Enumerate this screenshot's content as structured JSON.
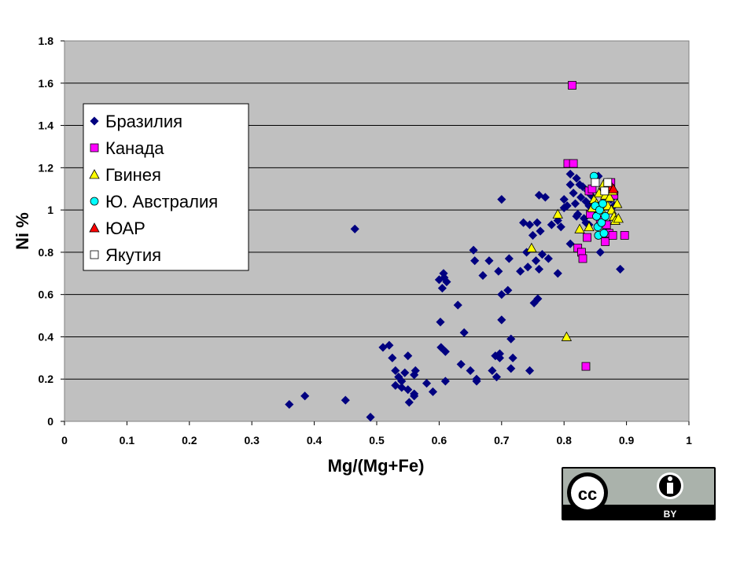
{
  "colors": {
    "plot_bg": "#c0c0c0",
    "brazil": "#000080",
    "canada": "#ff00ff",
    "guinea": "#ffff00",
    "australia": "#00ffff",
    "sa": "#ff0000",
    "yakutia": "#ffffff"
  },
  "license": {
    "icon": "cc-by-icon",
    "label": "BY"
  },
  "chart_data": {
    "type": "scatter",
    "xlabel": "Mg/(Mg+Fe)",
    "ylabel": "Ni %",
    "xlim": [
      0,
      1
    ],
    "ylim": [
      0,
      1.8
    ],
    "xticks": [
      "0",
      "0.1",
      "0.2",
      "0.3",
      "0.4",
      "0.5",
      "0.6",
      "0.7",
      "0.8",
      "0.9",
      "1"
    ],
    "yticks": [
      "0",
      "0.2",
      "0.4",
      "0.6",
      "0.8",
      "1",
      "1.2",
      "1.4",
      "1.6",
      "1.8"
    ],
    "grid": "horizontal",
    "legend_position": "upper-left",
    "series": [
      {
        "name": "Бразилия",
        "marker": "diamond",
        "color": "#000080",
        "points": [
          [
            0.36,
            0.08
          ],
          [
            0.385,
            0.12
          ],
          [
            0.45,
            0.1
          ],
          [
            0.465,
            0.91
          ],
          [
            0.49,
            0.02
          ],
          [
            0.51,
            0.35
          ],
          [
            0.52,
            0.36
          ],
          [
            0.525,
            0.3
          ],
          [
            0.53,
            0.24
          ],
          [
            0.53,
            0.17
          ],
          [
            0.535,
            0.21
          ],
          [
            0.54,
            0.19
          ],
          [
            0.54,
            0.16
          ],
          [
            0.545,
            0.23
          ],
          [
            0.55,
            0.15
          ],
          [
            0.55,
            0.31
          ],
          [
            0.552,
            0.09
          ],
          [
            0.56,
            0.12
          ],
          [
            0.56,
            0.22
          ],
          [
            0.56,
            0.13
          ],
          [
            0.562,
            0.24
          ],
          [
            0.58,
            0.18
          ],
          [
            0.59,
            0.14
          ],
          [
            0.6,
            0.67
          ],
          [
            0.602,
            0.47
          ],
          [
            0.603,
            0.35
          ],
          [
            0.605,
            0.63
          ],
          [
            0.607,
            0.7
          ],
          [
            0.608,
            0.68
          ],
          [
            0.61,
            0.33
          ],
          [
            0.61,
            0.19
          ],
          [
            0.612,
            0.66
          ],
          [
            0.63,
            0.55
          ],
          [
            0.635,
            0.27
          ],
          [
            0.64,
            0.42
          ],
          [
            0.65,
            0.24
          ],
          [
            0.655,
            0.81
          ],
          [
            0.657,
            0.76
          ],
          [
            0.66,
            0.2
          ],
          [
            0.66,
            0.19
          ],
          [
            0.67,
            0.69
          ],
          [
            0.68,
            0.76
          ],
          [
            0.685,
            0.24
          ],
          [
            0.69,
            0.31
          ],
          [
            0.692,
            0.21
          ],
          [
            0.695,
            0.71
          ],
          [
            0.697,
            0.3
          ],
          [
            0.697,
            0.32
          ],
          [
            0.7,
            0.6
          ],
          [
            0.7,
            0.48
          ],
          [
            0.7,
            1.05
          ],
          [
            0.71,
            0.62
          ],
          [
            0.712,
            0.77
          ],
          [
            0.715,
            0.25
          ],
          [
            0.715,
            0.39
          ],
          [
            0.718,
            0.3
          ],
          [
            0.73,
            0.71
          ],
          [
            0.735,
            0.94
          ],
          [
            0.74,
            0.8
          ],
          [
            0.742,
            0.73
          ],
          [
            0.745,
            0.24
          ],
          [
            0.745,
            0.93
          ],
          [
            0.75,
            0.88
          ],
          [
            0.752,
            0.56
          ],
          [
            0.755,
            0.76
          ],
          [
            0.757,
            0.94
          ],
          [
            0.758,
            0.58
          ],
          [
            0.76,
            0.72
          ],
          [
            0.76,
            1.07
          ],
          [
            0.762,
            0.9
          ],
          [
            0.765,
            0.79
          ],
          [
            0.77,
            1.06
          ],
          [
            0.775,
            0.77
          ],
          [
            0.78,
            0.93
          ],
          [
            0.79,
            0.7
          ],
          [
            0.79,
            0.95
          ],
          [
            0.795,
            0.92
          ],
          [
            0.8,
            1.01
          ],
          [
            0.8,
            1.05
          ],
          [
            0.805,
            1.02
          ],
          [
            0.81,
            1.17
          ],
          [
            0.81,
            1.12
          ],
          [
            0.815,
            1.08
          ],
          [
            0.818,
            1.03
          ],
          [
            0.82,
            1.15
          ],
          [
            0.822,
            0.98
          ],
          [
            0.825,
            1.12
          ],
          [
            0.827,
            1.06
          ],
          [
            0.83,
            1.11
          ],
          [
            0.832,
            0.96
          ],
          [
            0.835,
            1.04
          ],
          [
            0.838,
            1.09
          ],
          [
            0.84,
            0.93
          ],
          [
            0.843,
            1.07
          ],
          [
            0.845,
            1.0
          ],
          [
            0.85,
            1.13
          ],
          [
            0.852,
            0.99
          ],
          [
            0.855,
            1.16
          ],
          [
            0.858,
            0.8
          ],
          [
            0.86,
            1.08
          ],
          [
            0.862,
            1.1
          ],
          [
            0.865,
            0.9
          ],
          [
            0.87,
            1.12
          ],
          [
            0.875,
            1.05
          ],
          [
            0.88,
            1.02
          ],
          [
            0.89,
            0.72
          ],
          [
            0.81,
            0.84
          ],
          [
            0.835,
            0.94
          ],
          [
            0.82,
            0.97
          ],
          [
            0.84,
            1.02
          ]
        ]
      },
      {
        "name": "Канада",
        "marker": "square",
        "color": "#ff00ff",
        "points": [
          [
            0.813,
            1.59
          ],
          [
            0.806,
            1.22
          ],
          [
            0.815,
            1.22
          ],
          [
            0.822,
            0.82
          ],
          [
            0.828,
            0.8
          ],
          [
            0.83,
            0.77
          ],
          [
            0.835,
            0.26
          ],
          [
            0.837,
            0.87
          ],
          [
            0.84,
            1.09
          ],
          [
            0.842,
            0.98
          ],
          [
            0.845,
            1.1
          ],
          [
            0.858,
            0.95
          ],
          [
            0.866,
            0.85
          ],
          [
            0.868,
            0.93
          ],
          [
            0.872,
            0.89
          ],
          [
            0.875,
            1.13
          ],
          [
            0.878,
            0.88
          ],
          [
            0.897,
            0.88
          ],
          [
            0.88,
            1.07
          ]
        ]
      },
      {
        "name": "Гвинея",
        "marker": "triangle",
        "color": "#ffff00",
        "points": [
          [
            0.748,
            0.82
          ],
          [
            0.79,
            0.98
          ],
          [
            0.804,
            0.4
          ],
          [
            0.825,
            0.91
          ],
          [
            0.84,
            0.92
          ],
          [
            0.845,
            1.01
          ],
          [
            0.848,
            1.05
          ],
          [
            0.852,
            1.03
          ],
          [
            0.856,
            1.08
          ],
          [
            0.86,
            1.0
          ],
          [
            0.863,
            1.12
          ],
          [
            0.866,
            1.07
          ],
          [
            0.87,
            1.02
          ],
          [
            0.873,
            1.06
          ],
          [
            0.876,
            1.0
          ],
          [
            0.878,
            1.09
          ],
          [
            0.88,
            0.97
          ],
          [
            0.882,
            0.95
          ],
          [
            0.885,
            1.03
          ],
          [
            0.887,
            0.96
          ]
        ]
      },
      {
        "name": "Ю. Австралия",
        "marker": "circle",
        "color": "#00ffff",
        "points": [
          [
            0.848,
            1.16
          ],
          [
            0.85,
            1.02
          ],
          [
            0.852,
            0.97
          ],
          [
            0.854,
            0.92
          ],
          [
            0.855,
            0.88
          ],
          [
            0.857,
            1.0
          ],
          [
            0.86,
            0.94
          ],
          [
            0.862,
            1.03
          ],
          [
            0.864,
            0.89
          ],
          [
            0.866,
            0.97
          ]
        ]
      },
      {
        "name": "ЮАР",
        "marker": "triangle",
        "color": "#ff0000",
        "points": [
          [
            0.876,
            1.11
          ],
          [
            0.879,
            1.1
          ]
        ]
      },
      {
        "name": "Якутия",
        "marker": "square",
        "color": "#ffffff",
        "points": [
          [
            0.85,
            1.13
          ],
          [
            0.865,
            1.09
          ],
          [
            0.87,
            1.13
          ]
        ]
      }
    ]
  }
}
